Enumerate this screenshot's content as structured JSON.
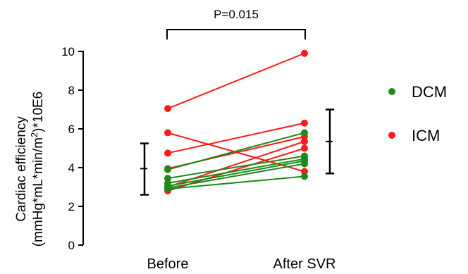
{
  "chart_data": {
    "type": "line",
    "categories": [
      "Before",
      "After SVR"
    ],
    "ylim": [
      0,
      10
    ],
    "yticks": [
      0,
      2,
      4,
      6,
      8,
      10
    ],
    "ylabel_line1": "Cardiac efficiency",
    "ylabel_line2_prefix": "(mmHg*mL*min/m",
    "ylabel_line2_sup": "2",
    "ylabel_line2_suffix": ")*10E6",
    "annotation": "P=0.015",
    "legend": [
      {
        "name": "DCM",
        "color": "#1a8a1a"
      },
      {
        "name": "ICM",
        "color": "#ff1a1a"
      }
    ],
    "series": [
      {
        "group": "ICM",
        "values": [
          7.05,
          9.9
        ]
      },
      {
        "group": "ICM",
        "values": [
          5.8,
          3.8
        ]
      },
      {
        "group": "ICM",
        "values": [
          4.75,
          6.3
        ]
      },
      {
        "group": "ICM",
        "values": [
          3.95,
          5.6
        ]
      },
      {
        "group": "ICM",
        "values": [
          3.0,
          5.35
        ]
      },
      {
        "group": "ICM",
        "values": [
          2.8,
          5.0
        ]
      },
      {
        "group": "DCM",
        "values": [
          3.9,
          5.8
        ]
      },
      {
        "group": "DCM",
        "values": [
          3.45,
          4.6
        ]
      },
      {
        "group": "DCM",
        "values": [
          3.2,
          4.45
        ]
      },
      {
        "group": "DCM",
        "values": [
          3.05,
          4.35
        ]
      },
      {
        "group": "DCM",
        "values": [
          2.95,
          4.2
        ]
      },
      {
        "group": "DCM",
        "values": [
          2.9,
          3.55
        ]
      }
    ],
    "error_bars": [
      {
        "category": "Before",
        "mean": 3.95,
        "low": 2.6,
        "high": 5.25
      },
      {
        "category": "After SVR",
        "mean": 5.35,
        "low": 3.7,
        "high": 7.0
      }
    ]
  }
}
